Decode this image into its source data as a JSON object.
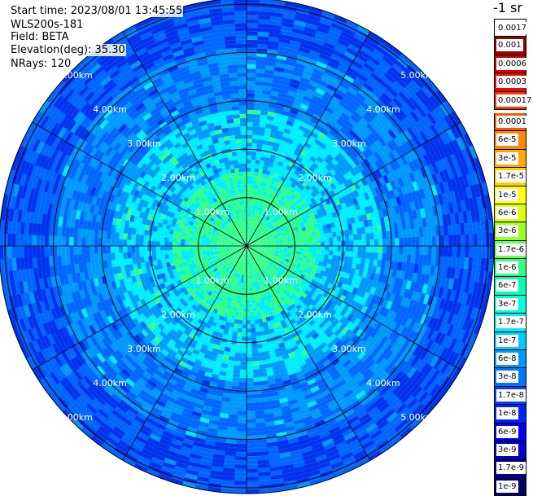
{
  "info": {
    "start_time": "Start time: 2023/08/01 13:45:55",
    "station": "WLS200s-181",
    "field": "Field: BETA",
    "elevation": "Elevation(deg): 35.30",
    "nrays": "NRays: 120"
  },
  "ring_labels": [
    "1.00km",
    "2.00km",
    "3.00km",
    "4.00km",
    "5.00km"
  ],
  "colorbar": {
    "unit": "-1 sr",
    "entries": [
      {
        "label": "0.0017",
        "color": "#ffffff"
      },
      {
        "label": "0.001",
        "color": "#990000"
      },
      {
        "label": "0.0006",
        "color": "#cc0000"
      },
      {
        "label": "0.0003",
        "color": "#ff0000"
      },
      {
        "label": "0.00017",
        "color": "#ff3300"
      },
      {
        "label": "0.0001",
        "color": "#ff5500"
      },
      {
        "label": "6e-5",
        "color": "#ff8800"
      },
      {
        "label": "3e-5",
        "color": "#ffaa00"
      },
      {
        "label": "1.7e-5",
        "color": "#ffd000"
      },
      {
        "label": "1e-5",
        "color": "#ffff00"
      },
      {
        "label": "6e-6",
        "color": "#ddff00"
      },
      {
        "label": "3e-6",
        "color": "#99ff22"
      },
      {
        "label": "1.7e-6",
        "color": "#66ff55"
      },
      {
        "label": "1e-6",
        "color": "#33ff88"
      },
      {
        "label": "6e-7",
        "color": "#00ffbb"
      },
      {
        "label": "3e-7",
        "color": "#00ffdd"
      },
      {
        "label": "1.7e-7",
        "color": "#00eeff"
      },
      {
        "label": "1e-7",
        "color": "#00ccff"
      },
      {
        "label": "6e-8",
        "color": "#0099ff"
      },
      {
        "label": "3e-8",
        "color": "#0077ff"
      },
      {
        "label": "1.7e-8",
        "color": "#0044ff"
      },
      {
        "label": "1e-8",
        "color": "#0022ff"
      },
      {
        "label": "6e-9",
        "color": "#0000ee"
      },
      {
        "label": "3e-9",
        "color": "#0000cc"
      },
      {
        "label": "1.7e-9",
        "color": "#000099"
      },
      {
        "label": "1e-9",
        "color": "#000066"
      }
    ]
  },
  "field_colors": {
    "near": "#33ff88",
    "mid": "#00eeff",
    "far": "#0099ff",
    "outer": "#0066ff",
    "rim": "#0033ee"
  }
}
